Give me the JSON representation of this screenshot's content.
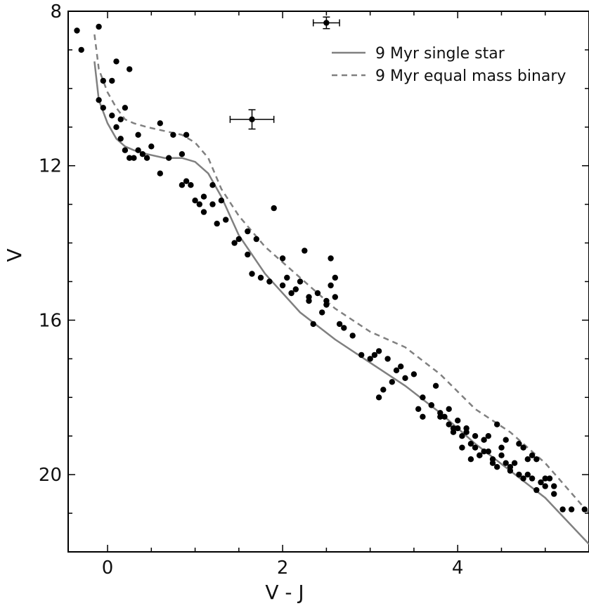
{
  "chart_data": {
    "type": "scatter",
    "xlabel": "V - J",
    "ylabel": "V",
    "xlim": [
      -0.45,
      5.5
    ],
    "ylim": [
      22.0,
      8.0
    ],
    "y_inverted": true,
    "x_ticks": [
      0,
      2,
      4
    ],
    "y_ticks": [
      8,
      12,
      16,
      20
    ],
    "grid": false,
    "legend_position": "top-right",
    "colors": {
      "points": "#000000",
      "models": "#808080"
    },
    "series": [
      {
        "name": "9 Myr single star",
        "style": "solid",
        "x": [
          -0.15,
          -0.1,
          0.0,
          0.1,
          0.2,
          0.3,
          0.45,
          0.65,
          0.85,
          1.0,
          1.15,
          1.3,
          1.5,
          1.8,
          2.2,
          2.6,
          3.0,
          3.4,
          3.8,
          4.2,
          4.6,
          5.0,
          5.5
        ],
        "y": [
          9.3,
          10.3,
          10.9,
          11.3,
          11.5,
          11.6,
          11.7,
          11.8,
          11.8,
          11.9,
          12.2,
          12.8,
          13.8,
          14.8,
          15.8,
          16.5,
          17.1,
          17.7,
          18.4,
          19.2,
          19.9,
          20.6,
          21.8
        ]
      },
      {
        "name": "9 Myr equal mass binary",
        "style": "dashed",
        "x": [
          -0.15,
          -0.1,
          0.0,
          0.1,
          0.2,
          0.3,
          0.45,
          0.65,
          0.85,
          1.0,
          1.15,
          1.3,
          1.5,
          1.8,
          2.2,
          2.6,
          3.0,
          3.4,
          3.8,
          4.2,
          4.6,
          5.0,
          5.5
        ],
        "y": [
          8.6,
          9.5,
          10.1,
          10.5,
          10.8,
          10.9,
          11.0,
          11.1,
          11.2,
          11.4,
          11.8,
          12.6,
          13.3,
          14.1,
          14.9,
          15.7,
          16.3,
          16.7,
          17.4,
          18.3,
          18.9,
          19.7,
          21.0
        ]
      },
      {
        "name": "",
        "type": "scatter",
        "x": [
          -0.35,
          -0.3,
          -0.1,
          -0.05,
          -0.1,
          -0.05,
          0.05,
          0.1,
          0.15,
          0.2,
          0.25,
          0.3,
          0.1,
          0.35,
          0.45,
          0.6,
          0.7,
          0.85,
          0.9,
          0.95,
          0.85,
          1.0,
          1.05,
          1.1,
          1.2,
          1.25,
          1.3,
          1.1,
          1.45,
          1.6,
          1.9,
          2.25,
          2.2,
          2.5,
          2.55,
          2.6,
          2.4,
          2.5,
          2.6,
          2.35,
          2.0,
          2.1,
          2.3,
          2.45,
          2.65,
          2.8,
          2.9,
          3.0,
          3.1,
          3.2,
          3.3,
          3.15,
          3.35,
          3.5,
          3.6,
          3.7,
          3.75,
          3.8,
          3.85,
          3.9,
          3.95,
          4.0,
          4.05,
          4.1,
          4.15,
          4.2,
          4.25,
          4.3,
          4.35,
          4.4,
          4.45,
          4.5,
          4.55,
          4.6,
          4.65,
          4.7,
          4.75,
          4.8,
          4.85,
          4.9,
          4.95,
          5.0,
          5.05,
          5.1,
          3.9,
          4.0,
          4.1,
          4.2,
          4.3,
          4.4,
          4.6,
          4.8,
          5.0,
          5.1,
          5.2,
          5.3,
          5.45,
          3.7,
          3.8,
          3.95,
          4.05,
          4.15,
          4.25,
          4.35,
          4.5,
          4.7,
          4.9,
          3.1,
          3.4,
          1.75,
          1.5,
          1.65,
          1.85,
          2.05,
          2.15,
          2.7,
          3.05,
          0.5,
          0.35,
          0.4,
          0.75,
          0.25,
          0.2,
          0.05,
          0.15,
          0.6,
          0.9,
          1.2,
          1.35,
          1.6,
          1.7,
          2.0,
          2.3,
          2.55,
          3.25,
          3.55,
          3.6,
          4.45,
          4.55,
          4.75,
          4.85
        ],
        "y": [
          8.5,
          9.0,
          8.4,
          9.8,
          10.3,
          10.5,
          10.7,
          11.0,
          11.3,
          11.6,
          11.8,
          11.8,
          9.3,
          11.6,
          11.8,
          12.2,
          11.8,
          11.7,
          12.4,
          12.5,
          12.5,
          12.9,
          13.0,
          12.8,
          13.0,
          13.5,
          12.9,
          13.2,
          14.0,
          14.3,
          13.1,
          14.2,
          15.0,
          15.6,
          14.4,
          14.9,
          15.3,
          15.5,
          15.4,
          16.1,
          15.1,
          15.3,
          15.5,
          15.8,
          16.1,
          16.4,
          16.9,
          17.0,
          16.8,
          17.0,
          17.3,
          17.8,
          17.2,
          17.4,
          18.0,
          18.2,
          17.7,
          18.4,
          18.5,
          18.7,
          18.9,
          18.8,
          19.0,
          18.9,
          19.2,
          19.3,
          19.5,
          19.1,
          19.4,
          19.6,
          19.8,
          19.5,
          19.7,
          19.9,
          19.7,
          20.0,
          20.1,
          19.6,
          20.1,
          20.4,
          20.2,
          20.3,
          20.1,
          20.3,
          18.3,
          18.6,
          18.8,
          19.0,
          19.4,
          19.7,
          19.8,
          20.0,
          20.1,
          20.5,
          20.9,
          20.9,
          20.9,
          18.2,
          18.5,
          18.8,
          19.3,
          19.6,
          19.5,
          19.0,
          19.3,
          19.2,
          19.6,
          18.0,
          17.5,
          14.9,
          13.9,
          14.8,
          15.0,
          14.9,
          15.2,
          16.2,
          16.9,
          11.5,
          11.2,
          11.7,
          11.2,
          9.5,
          10.5,
          9.8,
          10.8,
          10.9,
          11.2,
          12.5,
          13.4,
          13.7,
          13.9,
          14.4,
          15.4,
          15.1,
          17.6,
          18.3,
          18.5,
          18.7,
          19.1,
          19.3,
          19.5
        ]
      }
    ],
    "error_bars": [
      {
        "x": 2.5,
        "y": 8.3,
        "xerr": 0.15,
        "yerr": 0.15
      },
      {
        "x": 1.65,
        "y": 10.8,
        "xerr": 0.25,
        "yerr": 0.25
      }
    ]
  }
}
